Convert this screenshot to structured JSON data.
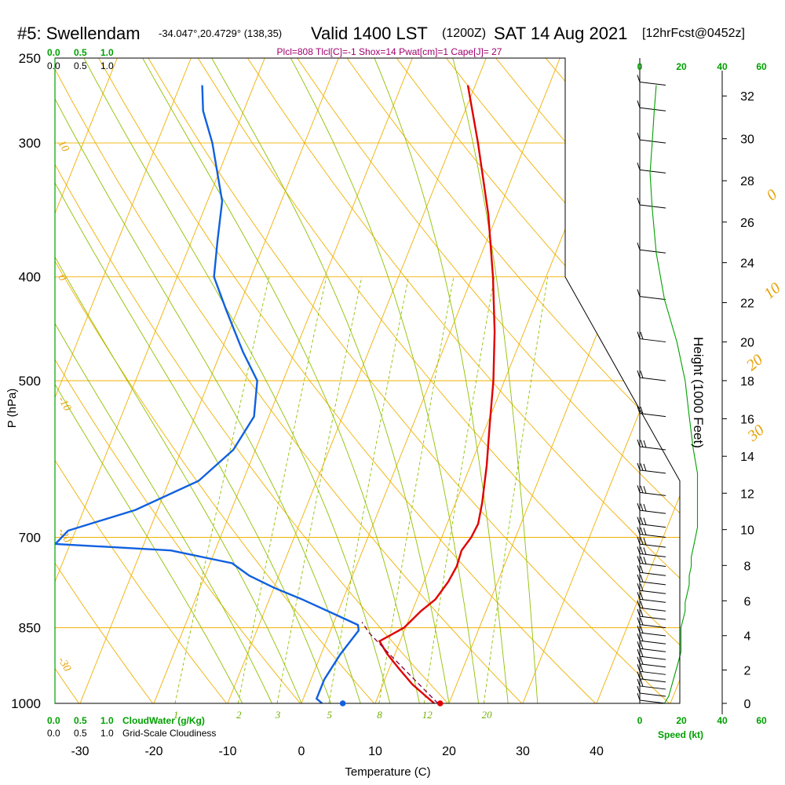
{
  "header": {
    "station": "#5: Swellendam",
    "coords": "-34.047°,20.4729° (138,35)",
    "valid": "Valid 1400 LST",
    "zulu": "(1200Z)",
    "date": "SAT 14 Aug 2021",
    "forecast": "[12hrFcst@0452z]"
  },
  "indices": "Plcl=808 Tlcl[C]=-1 Shox=14 Pwat[cm]=1 Cape[J]= 27",
  "scale_labels": {
    "cloudwater_label": "CloudWater (g/Kg)",
    "cloudiness_label": "Grid-Scale Cloudiness",
    "cw_ticks": [
      "0.0",
      "0.5",
      "1.0"
    ],
    "gc_ticks": [
      "0.0",
      "0.5",
      "1.0"
    ],
    "speed_label": "Speed (kt)",
    "speed_ticks": [
      "0",
      "20",
      "40",
      "60"
    ]
  },
  "colors": {
    "isotherm": "#f0b000",
    "dry_adiabat": "#f0b000",
    "moist_adiabat": "#90c000",
    "mixing_ratio": "#90c000",
    "temperature": "#e00000",
    "dewpoint": "#1060e0",
    "parcel": "#800040",
    "wind": "#000000",
    "speed": "#00a000",
    "cloud_axis": "#00a000"
  },
  "chart_data": {
    "type": "skew-t",
    "xlabel": "Temperature (C)",
    "ylabel": "P (hPa)",
    "y2label": "Height (1000 Feet)",
    "x_ticks": [
      -30,
      -20,
      -10,
      0,
      10,
      20,
      30,
      40
    ],
    "p_ticks": [
      250,
      300,
      400,
      500,
      700,
      850,
      1000
    ],
    "height_ticks": [
      0,
      2,
      4,
      6,
      8,
      10,
      12,
      14,
      16,
      18,
      20,
      22,
      24,
      26,
      28,
      30,
      32
    ],
    "ylim_hpa": [
      250,
      1000
    ],
    "xlim_c": [
      -34,
      36
    ],
    "isotherm_labels": [
      {
        "text": "10",
        "p": 300,
        "t": -34
      },
      {
        "text": "0",
        "p": 400,
        "t": -34
      },
      {
        "text": "-10",
        "p": 520,
        "t": -34
      },
      {
        "text": "-20",
        "p": 690,
        "t": -34
      },
      {
        "text": "-30",
        "p": 910,
        "t": -34
      },
      {
        "text": "0",
        "p": 340,
        "t": 36.5
      },
      {
        "text": "10",
        "p": 420,
        "t": 41.5
      },
      {
        "text": "20",
        "p": 490,
        "t": 43
      },
      {
        "text": "30",
        "p": 570,
        "t": 47
      }
    ],
    "mixing_ratio_labels": [
      "1",
      "2",
      "3",
      "5",
      "8",
      "12",
      "20"
    ],
    "mixing_ratio_values": [
      1,
      2,
      3,
      5,
      8,
      12,
      20
    ],
    "temperature": [
      {
        "p": 1000,
        "t": 18.0
      },
      {
        "p": 985,
        "t": 16.5
      },
      {
        "p": 960,
        "t": 14.0
      },
      {
        "p": 930,
        "t": 11.5
      },
      {
        "p": 900,
        "t": 9.0
      },
      {
        "p": 875,
        "t": 7.2
      },
      {
        "p": 850,
        "t": 9.8
      },
      {
        "p": 820,
        "t": 11.2
      },
      {
        "p": 800,
        "t": 12.5
      },
      {
        "p": 770,
        "t": 13.3
      },
      {
        "p": 745,
        "t": 13.6
      },
      {
        "p": 720,
        "t": 13.4
      },
      {
        "p": 700,
        "t": 14.0
      },
      {
        "p": 680,
        "t": 14.2
      },
      {
        "p": 650,
        "t": 13.6
      },
      {
        "p": 600,
        "t": 12.2
      },
      {
        "p": 550,
        "t": 10.4
      },
      {
        "p": 500,
        "t": 8.5
      },
      {
        "p": 450,
        "t": 6.0
      },
      {
        "p": 400,
        "t": 2.8
      },
      {
        "p": 350,
        "t": -1.2
      },
      {
        "p": 300,
        "t": -6.5
      },
      {
        "p": 265,
        "t": -11.0
      }
    ],
    "dewpoint": [
      {
        "p": 1000,
        "t": 2.8
      },
      {
        "p": 990,
        "t": 1.8
      },
      {
        "p": 950,
        "t": 1.8
      },
      {
        "p": 900,
        "t": 2.6
      },
      {
        "p": 855,
        "t": 3.8
      },
      {
        "p": 845,
        "t": 3.4
      },
      {
        "p": 830,
        "t": 0.5
      },
      {
        "p": 800,
        "t": -5.5
      },
      {
        "p": 780,
        "t": -10.0
      },
      {
        "p": 760,
        "t": -14.0
      },
      {
        "p": 740,
        "t": -17.0
      },
      {
        "p": 720,
        "t": -26.0
      },
      {
        "p": 710,
        "t": -42.0
      },
      {
        "p": 690,
        "t": -41.0
      },
      {
        "p": 660,
        "t": -33.0
      },
      {
        "p": 620,
        "t": -26.0
      },
      {
        "p": 580,
        "t": -23.0
      },
      {
        "p": 540,
        "t": -22.0
      },
      {
        "p": 500,
        "t": -23.5
      },
      {
        "p": 470,
        "t": -27.0
      },
      {
        "p": 430,
        "t": -31.5
      },
      {
        "p": 400,
        "t": -35.0
      },
      {
        "p": 370,
        "t": -36.5
      },
      {
        "p": 340,
        "t": -38.0
      },
      {
        "p": 300,
        "t": -42.5
      },
      {
        "p": 280,
        "t": -45.5
      },
      {
        "p": 265,
        "t": -47.0
      }
    ],
    "parcel": [
      {
        "p": 1000,
        "t": 18.5
      },
      {
        "p": 950,
        "t": 14.0
      },
      {
        "p": 900,
        "t": 9.3
      },
      {
        "p": 860,
        "t": 5.4
      },
      {
        "p": 840,
        "t": 3.8
      }
    ],
    "surface_temp_marker": {
      "p": 1000,
      "t": 18.8
    },
    "surface_dew_marker": {
      "p": 1000,
      "t": 5.6
    },
    "wind": [
      {
        "p": 1000,
        "speed_kt": 12
      },
      {
        "p": 985,
        "speed_kt": 14
      },
      {
        "p": 970,
        "speed_kt": 15
      },
      {
        "p": 955,
        "speed_kt": 16
      },
      {
        "p": 940,
        "speed_kt": 17
      },
      {
        "p": 925,
        "speed_kt": 18
      },
      {
        "p": 910,
        "speed_kt": 19
      },
      {
        "p": 895,
        "speed_kt": 20
      },
      {
        "p": 880,
        "speed_kt": 20
      },
      {
        "p": 865,
        "speed_kt": 20
      },
      {
        "p": 850,
        "speed_kt": 20
      },
      {
        "p": 835,
        "speed_kt": 21
      },
      {
        "p": 820,
        "speed_kt": 22
      },
      {
        "p": 805,
        "speed_kt": 22
      },
      {
        "p": 790,
        "speed_kt": 23
      },
      {
        "p": 775,
        "speed_kt": 24
      },
      {
        "p": 760,
        "speed_kt": 24
      },
      {
        "p": 745,
        "speed_kt": 25
      },
      {
        "p": 730,
        "speed_kt": 25
      },
      {
        "p": 715,
        "speed_kt": 26
      },
      {
        "p": 700,
        "speed_kt": 27
      },
      {
        "p": 685,
        "speed_kt": 28
      },
      {
        "p": 665,
        "speed_kt": 28
      },
      {
        "p": 640,
        "speed_kt": 28
      },
      {
        "p": 610,
        "speed_kt": 28
      },
      {
        "p": 580,
        "speed_kt": 26
      },
      {
        "p": 540,
        "speed_kt": 24
      },
      {
        "p": 500,
        "speed_kt": 22
      },
      {
        "p": 460,
        "speed_kt": 18
      },
      {
        "p": 420,
        "speed_kt": 12
      },
      {
        "p": 380,
        "speed_kt": 8
      },
      {
        "p": 345,
        "speed_kt": 6
      },
      {
        "p": 320,
        "speed_kt": 5
      },
      {
        "p": 300,
        "speed_kt": 6
      },
      {
        "p": 280,
        "speed_kt": 7
      },
      {
        "p": 265,
        "speed_kt": 8
      }
    ]
  }
}
